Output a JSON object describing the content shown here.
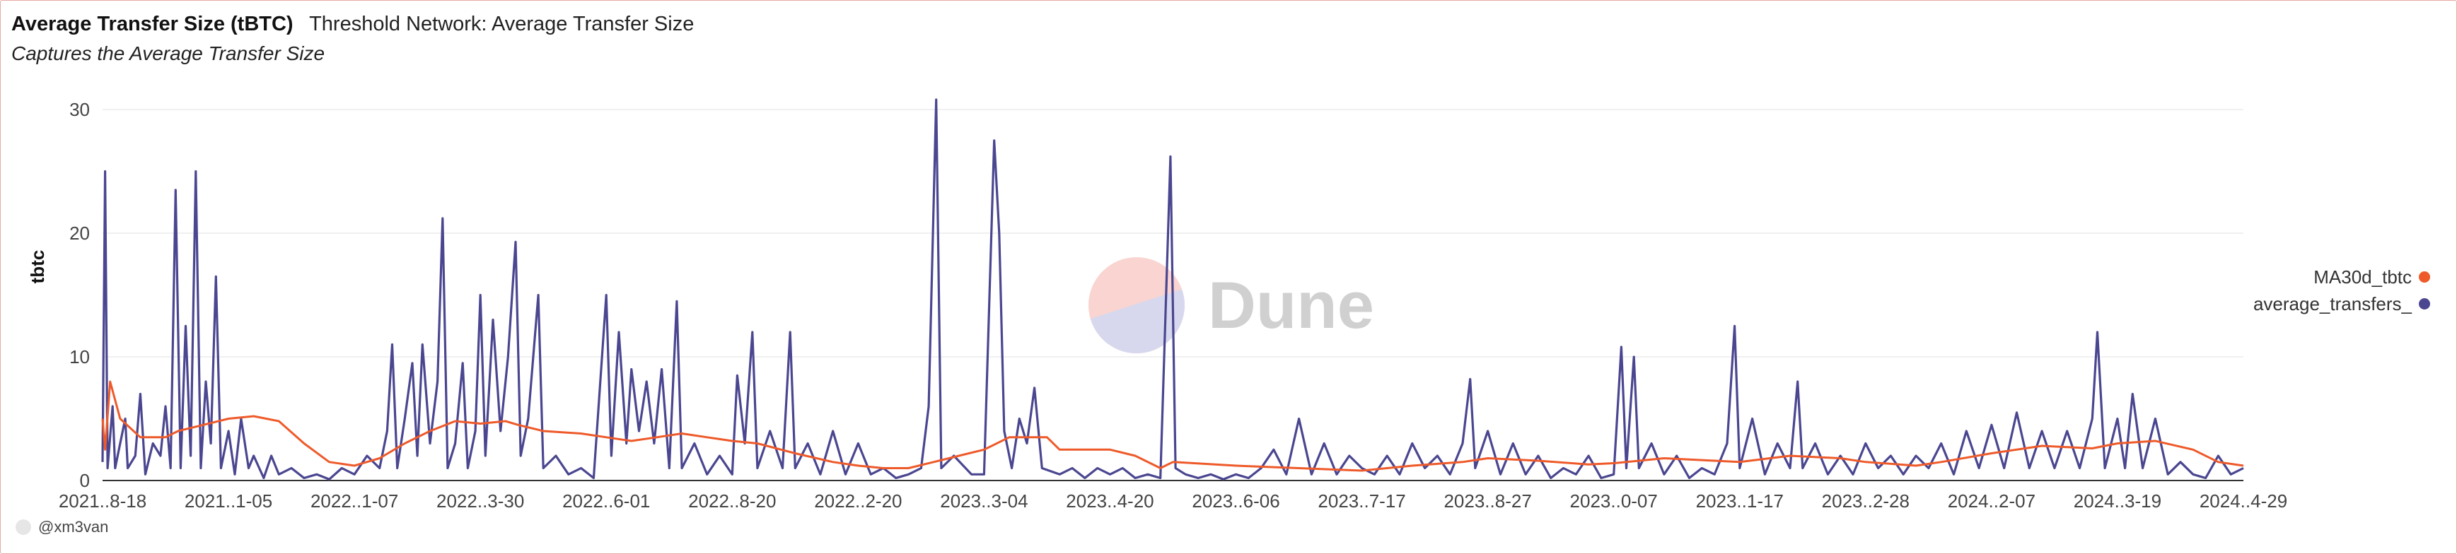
{
  "header": {
    "title": "Average Transfer Size (tBTC)",
    "subtitle": "Threshold Network: Average Transfer Size",
    "description": "Captures the Average Transfer Size"
  },
  "watermark": {
    "text": "Dune"
  },
  "footer": {
    "author": "@xm3van"
  },
  "colors": {
    "avg": "#4a4690",
    "ma": "#ee5a2a",
    "grid": "#ececec",
    "axis": "#333333"
  },
  "chart_data": {
    "type": "line",
    "title": "Average Transfer Size (tBTC)",
    "ylabel": "tbtc",
    "ylim": [
      0,
      30
    ],
    "yticks": [
      0,
      10,
      20,
      30
    ],
    "xticks": [
      "2021..8-18",
      "2021..1-05",
      "2022..1-07",
      "2022..3-30",
      "2022..6-01",
      "2022..8-20",
      "2022..2-20",
      "2023..3-04",
      "2023..4-20",
      "2023..6-06",
      "2023..7-17",
      "2023..8-27",
      "2023..0-07",
      "2023..1-17",
      "2023..2-28",
      "2024..2-07",
      "2024..3-19",
      "2024..4-29"
    ],
    "legend": {
      "position": "right",
      "entries": [
        "MA30d_tbtc",
        "average_transfers_"
      ]
    },
    "series": [
      {
        "name": "average_transfers_",
        "color": "#4a4690",
        "x_start": 0,
        "x_end": 17,
        "points": [
          [
            0,
            1.5
          ],
          [
            0.02,
            25
          ],
          [
            0.04,
            1
          ],
          [
            0.08,
            6
          ],
          [
            0.1,
            1
          ],
          [
            0.14,
            3
          ],
          [
            0.18,
            5
          ],
          [
            0.2,
            1
          ],
          [
            0.26,
            2
          ],
          [
            0.3,
            7
          ],
          [
            0.34,
            0.5
          ],
          [
            0.4,
            3
          ],
          [
            0.46,
            2
          ],
          [
            0.5,
            6
          ],
          [
            0.54,
            1
          ],
          [
            0.58,
            23.5
          ],
          [
            0.62,
            1
          ],
          [
            0.66,
            12.5
          ],
          [
            0.7,
            2
          ],
          [
            0.74,
            25
          ],
          [
            0.78,
            1
          ],
          [
            0.82,
            8
          ],
          [
            0.86,
            3
          ],
          [
            0.9,
            16.5
          ],
          [
            0.94,
            1
          ],
          [
            1,
            4
          ],
          [
            1.05,
            0.5
          ],
          [
            1.1,
            5
          ],
          [
            1.16,
            1
          ],
          [
            1.2,
            2
          ],
          [
            1.28,
            0.2
          ],
          [
            1.34,
            2
          ],
          [
            1.4,
            0.5
          ],
          [
            1.5,
            1
          ],
          [
            1.6,
            0.2
          ],
          [
            1.7,
            0.5
          ],
          [
            1.8,
            0.1
          ],
          [
            1.9,
            1
          ],
          [
            2,
            0.5
          ],
          [
            2.1,
            2
          ],
          [
            2.2,
            1
          ],
          [
            2.26,
            4
          ],
          [
            2.3,
            11
          ],
          [
            2.34,
            1
          ],
          [
            2.4,
            5
          ],
          [
            2.46,
            9.5
          ],
          [
            2.5,
            2
          ],
          [
            2.54,
            11
          ],
          [
            2.6,
            3
          ],
          [
            2.66,
            8
          ],
          [
            2.7,
            21.2
          ],
          [
            2.74,
            1
          ],
          [
            2.8,
            3
          ],
          [
            2.86,
            9.5
          ],
          [
            2.9,
            1
          ],
          [
            2.96,
            4
          ],
          [
            3,
            15
          ],
          [
            3.04,
            2
          ],
          [
            3.1,
            13
          ],
          [
            3.16,
            4
          ],
          [
            3.22,
            10
          ],
          [
            3.28,
            19.3
          ],
          [
            3.32,
            2
          ],
          [
            3.38,
            5
          ],
          [
            3.46,
            15
          ],
          [
            3.5,
            1
          ],
          [
            3.6,
            2
          ],
          [
            3.7,
            0.5
          ],
          [
            3.8,
            1
          ],
          [
            3.9,
            0.2
          ],
          [
            4,
            15
          ],
          [
            4.04,
            2
          ],
          [
            4.1,
            12
          ],
          [
            4.16,
            3
          ],
          [
            4.2,
            9
          ],
          [
            4.26,
            4
          ],
          [
            4.32,
            8
          ],
          [
            4.38,
            3
          ],
          [
            4.44,
            9
          ],
          [
            4.5,
            1
          ],
          [
            4.56,
            14.5
          ],
          [
            4.6,
            1
          ],
          [
            4.7,
            3
          ],
          [
            4.8,
            0.5
          ],
          [
            4.9,
            2
          ],
          [
            5,
            0.5
          ],
          [
            5.04,
            8.5
          ],
          [
            5.1,
            3
          ],
          [
            5.16,
            12
          ],
          [
            5.2,
            1
          ],
          [
            5.3,
            4
          ],
          [
            5.4,
            1
          ],
          [
            5.46,
            12
          ],
          [
            5.5,
            1
          ],
          [
            5.6,
            3
          ],
          [
            5.7,
            0.5
          ],
          [
            5.8,
            4
          ],
          [
            5.9,
            0.5
          ],
          [
            6,
            3
          ],
          [
            6.1,
            0.5
          ],
          [
            6.2,
            1
          ],
          [
            6.3,
            0.2
          ],
          [
            6.4,
            0.5
          ],
          [
            6.5,
            1
          ],
          [
            6.56,
            6
          ],
          [
            6.62,
            30.8
          ],
          [
            6.66,
            1
          ],
          [
            6.76,
            2
          ],
          [
            6.9,
            0.5
          ],
          [
            7,
            0.5
          ],
          [
            7.08,
            27.5
          ],
          [
            7.12,
            20
          ],
          [
            7.16,
            4
          ],
          [
            7.22,
            1
          ],
          [
            7.28,
            5
          ],
          [
            7.34,
            3
          ],
          [
            7.4,
            7.5
          ],
          [
            7.46,
            1
          ],
          [
            7.6,
            0.5
          ],
          [
            7.7,
            1
          ],
          [
            7.8,
            0.2
          ],
          [
            7.9,
            1
          ],
          [
            8,
            0.5
          ],
          [
            8.1,
            1
          ],
          [
            8.2,
            0.2
          ],
          [
            8.3,
            0.5
          ],
          [
            8.4,
            0.2
          ],
          [
            8.48,
            26.2
          ],
          [
            8.52,
            1
          ],
          [
            8.6,
            0.5
          ],
          [
            8.7,
            0.2
          ],
          [
            8.8,
            0.5
          ],
          [
            8.9,
            0.1
          ],
          [
            9,
            0.5
          ],
          [
            9.1,
            0.2
          ],
          [
            9.2,
            1
          ],
          [
            9.3,
            2.5
          ],
          [
            9.4,
            0.5
          ],
          [
            9.5,
            5
          ],
          [
            9.6,
            0.5
          ],
          [
            9.7,
            3
          ],
          [
            9.8,
            0.5
          ],
          [
            9.9,
            2
          ],
          [
            10,
            1
          ],
          [
            10.1,
            0.5
          ],
          [
            10.2,
            2
          ],
          [
            10.3,
            0.5
          ],
          [
            10.4,
            3
          ],
          [
            10.5,
            1
          ],
          [
            10.6,
            2
          ],
          [
            10.7,
            0.5
          ],
          [
            10.8,
            3
          ],
          [
            10.86,
            8.2
          ],
          [
            10.9,
            1
          ],
          [
            11,
            4
          ],
          [
            11.1,
            0.5
          ],
          [
            11.2,
            3
          ],
          [
            11.3,
            0.5
          ],
          [
            11.4,
            2
          ],
          [
            11.5,
            0.2
          ],
          [
            11.6,
            1
          ],
          [
            11.7,
            0.5
          ],
          [
            11.8,
            2
          ],
          [
            11.9,
            0.2
          ],
          [
            12,
            0.5
          ],
          [
            12.06,
            10.8
          ],
          [
            12.1,
            1
          ],
          [
            12.16,
            10
          ],
          [
            12.2,
            1
          ],
          [
            12.3,
            3
          ],
          [
            12.4,
            0.5
          ],
          [
            12.5,
            2
          ],
          [
            12.6,
            0.2
          ],
          [
            12.7,
            1
          ],
          [
            12.8,
            0.5
          ],
          [
            12.9,
            3
          ],
          [
            12.96,
            12.5
          ],
          [
            13,
            1
          ],
          [
            13.1,
            5
          ],
          [
            13.2,
            0.5
          ],
          [
            13.3,
            3
          ],
          [
            13.4,
            1
          ],
          [
            13.46,
            8
          ],
          [
            13.5,
            1
          ],
          [
            13.6,
            3
          ],
          [
            13.7,
            0.5
          ],
          [
            13.8,
            2
          ],
          [
            13.9,
            0.5
          ],
          [
            14,
            3
          ],
          [
            14.1,
            1
          ],
          [
            14.2,
            2
          ],
          [
            14.3,
            0.5
          ],
          [
            14.4,
            2
          ],
          [
            14.5,
            1
          ],
          [
            14.6,
            3
          ],
          [
            14.7,
            0.5
          ],
          [
            14.8,
            4
          ],
          [
            14.9,
            1
          ],
          [
            15,
            4.5
          ],
          [
            15.1,
            1
          ],
          [
            15.2,
            5.5
          ],
          [
            15.3,
            1
          ],
          [
            15.4,
            4
          ],
          [
            15.5,
            1
          ],
          [
            15.6,
            4
          ],
          [
            15.7,
            1
          ],
          [
            15.8,
            5
          ],
          [
            15.84,
            12
          ],
          [
            15.9,
            1
          ],
          [
            16,
            5
          ],
          [
            16.06,
            1
          ],
          [
            16.12,
            7
          ],
          [
            16.2,
            1
          ],
          [
            16.3,
            5
          ],
          [
            16.4,
            0.5
          ],
          [
            16.5,
            1.5
          ],
          [
            16.6,
            0.5
          ],
          [
            16.7,
            0.2
          ],
          [
            16.8,
            2
          ],
          [
            16.9,
            0.5
          ],
          [
            17,
            1
          ]
        ]
      },
      {
        "name": "MA30d_tbtc",
        "color": "#ee5a2a",
        "points": [
          [
            0,
            5
          ],
          [
            0.02,
            2.5
          ],
          [
            0.06,
            8
          ],
          [
            0.14,
            5
          ],
          [
            0.3,
            3.5
          ],
          [
            0.5,
            3.5
          ],
          [
            0.6,
            4
          ],
          [
            0.8,
            4.5
          ],
          [
            1,
            5
          ],
          [
            1.2,
            5.2
          ],
          [
            1.4,
            4.8
          ],
          [
            1.6,
            3
          ],
          [
            1.8,
            1.5
          ],
          [
            2,
            1.2
          ],
          [
            2.2,
            1.8
          ],
          [
            2.4,
            3
          ],
          [
            2.6,
            4
          ],
          [
            2.8,
            4.8
          ],
          [
            3,
            4.6
          ],
          [
            3.2,
            4.8
          ],
          [
            3.3,
            4.5
          ],
          [
            3.5,
            4
          ],
          [
            3.8,
            3.8
          ],
          [
            4,
            3.5
          ],
          [
            4.2,
            3.2
          ],
          [
            4.4,
            3.5
          ],
          [
            4.6,
            3.8
          ],
          [
            4.8,
            3.5
          ],
          [
            5,
            3.2
          ],
          [
            5.2,
            3
          ],
          [
            5.5,
            2.2
          ],
          [
            5.8,
            1.5
          ],
          [
            6,
            1.2
          ],
          [
            6.2,
            1
          ],
          [
            6.4,
            1
          ],
          [
            6.6,
            1.5
          ],
          [
            6.8,
            2
          ],
          [
            7,
            2.5
          ],
          [
            7.2,
            3.5
          ],
          [
            7.5,
            3.5
          ],
          [
            7.6,
            2.5
          ],
          [
            8,
            2.5
          ],
          [
            8.2,
            2
          ],
          [
            8.4,
            1
          ],
          [
            8.5,
            1.5
          ],
          [
            9,
            1.2
          ],
          [
            9.5,
            1
          ],
          [
            10,
            0.8
          ],
          [
            10.4,
            1.2
          ],
          [
            10.8,
            1.5
          ],
          [
            11,
            1.8
          ],
          [
            11.4,
            1.6
          ],
          [
            11.8,
            1.3
          ],
          [
            12,
            1.4
          ],
          [
            12.4,
            1.8
          ],
          [
            12.8,
            1.6
          ],
          [
            13,
            1.5
          ],
          [
            13.4,
            2
          ],
          [
            13.8,
            1.8
          ],
          [
            14,
            1.5
          ],
          [
            14.4,
            1.2
          ],
          [
            14.6,
            1.5
          ],
          [
            15,
            2.2
          ],
          [
            15.4,
            2.8
          ],
          [
            15.8,
            2.6
          ],
          [
            16,
            3
          ],
          [
            16.3,
            3.2
          ],
          [
            16.6,
            2.5
          ],
          [
            16.8,
            1.5
          ],
          [
            17,
            1.2
          ]
        ]
      }
    ]
  }
}
